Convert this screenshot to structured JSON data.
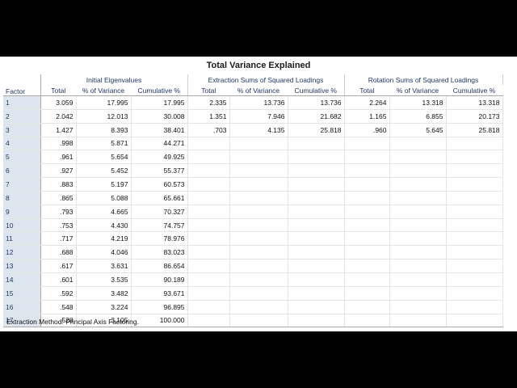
{
  "title": "Total Variance Explained",
  "columns": {
    "factor": "Factor",
    "groups": [
      "Initial Eigenvalues",
      "Extraction Sums of Squared Loadings",
      "Rotation Sums of Squared Loadings"
    ],
    "sub": [
      "Total",
      "% of Variance",
      "Cumulative %"
    ]
  },
  "rows": [
    [
      "1",
      "3.059",
      "17.995",
      "17.995",
      "2.335",
      "13.736",
      "13.736",
      "2.264",
      "13.318",
      "13.318"
    ],
    [
      "2",
      "2.042",
      "12.013",
      "30.008",
      "1.351",
      "7.946",
      "21.682",
      "1.165",
      "6.855",
      "20.173"
    ],
    [
      "3",
      "1.427",
      "8.393",
      "38.401",
      ".703",
      "4.135",
      "25.818",
      ".960",
      "5.645",
      "25.818"
    ],
    [
      "4",
      ".998",
      "5.871",
      "44.271",
      "",
      "",
      "",
      "",
      "",
      ""
    ],
    [
      "5",
      ".961",
      "5.654",
      "49.925",
      "",
      "",
      "",
      "",
      "",
      ""
    ],
    [
      "6",
      ".927",
      "5.452",
      "55.377",
      "",
      "",
      "",
      "",
      "",
      ""
    ],
    [
      "7",
      ".883",
      "5.197",
      "60.573",
      "",
      "",
      "",
      "",
      "",
      ""
    ],
    [
      "8",
      ".865",
      "5.088",
      "65.661",
      "",
      "",
      "",
      "",
      "",
      ""
    ],
    [
      "9",
      ".793",
      "4.665",
      "70.327",
      "",
      "",
      "",
      "",
      "",
      ""
    ],
    [
      "10",
      ".753",
      "4.430",
      "74.757",
      "",
      "",
      "",
      "",
      "",
      ""
    ],
    [
      "11",
      ".717",
      "4.219",
      "78.976",
      "",
      "",
      "",
      "",
      "",
      ""
    ],
    [
      "12",
      ".688",
      "4.046",
      "83.023",
      "",
      "",
      "",
      "",
      "",
      ""
    ],
    [
      "13",
      ".617",
      "3.631",
      "86.654",
      "",
      "",
      "",
      "",
      "",
      ""
    ],
    [
      "14",
      ".601",
      "3.535",
      "90.189",
      "",
      "",
      "",
      "",
      "",
      ""
    ],
    [
      "15",
      ".592",
      "3.482",
      "93.671",
      "",
      "",
      "",
      "",
      "",
      ""
    ],
    [
      "16",
      ".548",
      "3.224",
      "96.895",
      "",
      "",
      "",
      "",
      "",
      ""
    ],
    [
      "17",
      ".528",
      "3.105",
      "100.000",
      "",
      "",
      "",
      "",
      "",
      ""
    ]
  ],
  "footnote": "Extraction Method: Principal Axis Factoring."
}
